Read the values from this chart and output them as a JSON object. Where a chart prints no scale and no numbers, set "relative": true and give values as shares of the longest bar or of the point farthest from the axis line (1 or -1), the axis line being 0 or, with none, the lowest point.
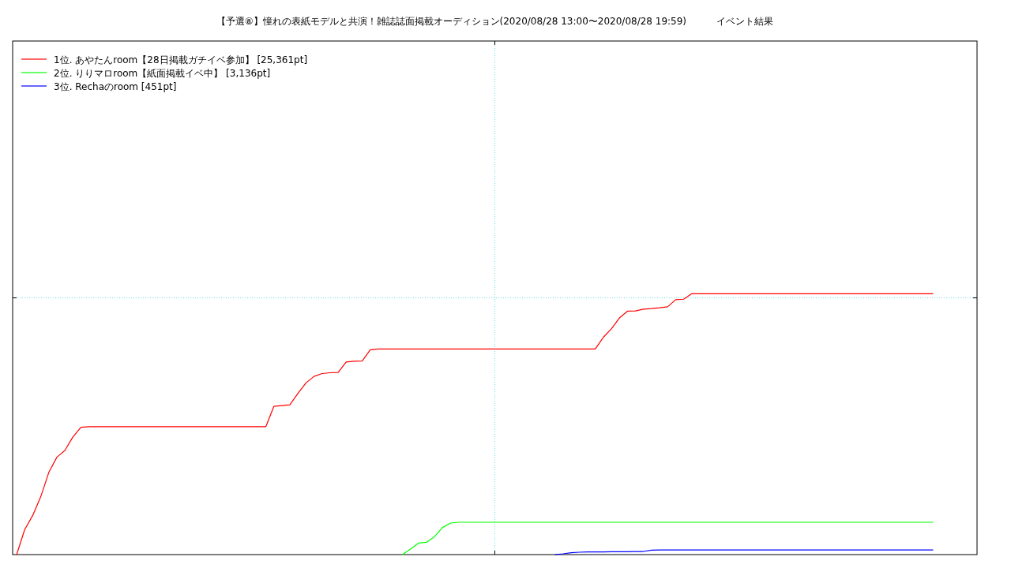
{
  "chart_data": {
    "type": "line",
    "title": "【予選⑧】憧れの表紙モデルと共演！雑誌誌面掲載オーディション(2020/08/28 13:00〜2020/08/28 19:59)          イベント結果",
    "categories": [
      null,
      null,
      null,
      null,
      null,
      null,
      null,
      null,
      null,
      null,
      null,
      null,
      null,
      null,
      null,
      null,
      null,
      null,
      null,
      null,
      null,
      null,
      null,
      null,
      null,
      null,
      null,
      null,
      null,
      null,
      null,
      null,
      null,
      null,
      null,
      null,
      null,
      null,
      null,
      null,
      null,
      null,
      null,
      null,
      null,
      null,
      null,
      null,
      null,
      null,
      null,
      null,
      null,
      null,
      null,
      null,
      null,
      null,
      null,
      null,
      null,
      null,
      null,
      null,
      null,
      null,
      null,
      null,
      null,
      null,
      null,
      null,
      null,
      null,
      null,
      null,
      null,
      null,
      null,
      null,
      null,
      null,
      null,
      null,
      null,
      null,
      null,
      null,
      null,
      null,
      null,
      null,
      null,
      null,
      null,
      null,
      null,
      null,
      null,
      null,
      null,
      null,
      null,
      null,
      null,
      null,
      null,
      null,
      null,
      null,
      null,
      null,
      null,
      null,
      null,
      null,
      null,
      null,
      null,
      null
    ],
    "relative": true,
    "legend": "top left",
    "ref_lines": [
      {
        "axis": "y",
        "value": 0.984,
        "color": "#66dede",
        "line_style": "dotted"
      }
    ],
    "series": [
      {
        "name": "1位. あやたんroom【28日掲載ガチイベ参加】 [25,361pt]",
        "color": "#ff0000",
        "values": [
          0,
          0.096,
          0.15,
          0.222,
          0.315,
          0.373,
          0.399,
          0.451,
          0.488,
          0.49,
          0.49,
          0.49,
          0.49,
          0.49,
          0.49,
          0.49,
          0.49,
          0.49,
          0.49,
          0.49,
          0.49,
          0.49,
          0.49,
          0.49,
          0.49,
          0.49,
          0.49,
          0.49,
          0.49,
          0.49,
          0.49,
          0.49,
          0.568,
          0.571,
          0.574,
          0.618,
          0.658,
          0.683,
          0.694,
          0.697,
          0.698,
          0.738,
          0.741,
          0.742,
          0.785,
          0.788,
          0.788,
          0.788,
          0.788,
          0.788,
          0.788,
          0.788,
          0.788,
          0.788,
          0.788,
          0.788,
          0.788,
          0.788,
          0.788,
          0.788,
          0.788,
          0.788,
          0.788,
          0.788,
          0.788,
          0.788,
          0.788,
          0.788,
          0.788,
          0.788,
          0.788,
          0.788,
          0.788,
          0.833,
          0.865,
          0.907,
          0.933,
          0.934,
          0.941,
          0.943,
          0.946,
          0.95,
          0.977,
          0.979,
          1,
          1,
          1,
          1,
          1,
          1,
          1,
          1,
          1,
          1,
          1,
          1,
          1,
          1,
          1,
          1,
          1,
          1,
          1,
          1,
          1,
          1,
          1,
          1,
          1,
          1,
          1,
          1,
          1,
          1,
          1,
          null,
          null,
          null,
          null,
          null
        ]
      },
      {
        "name": "2位. りりマロroom【紙面掲載イベ中】 [3,136pt]",
        "color": "#00ff00",
        "values": [
          null,
          null,
          null,
          null,
          null,
          null,
          null,
          null,
          null,
          null,
          null,
          null,
          null,
          null,
          null,
          null,
          null,
          null,
          null,
          null,
          null,
          null,
          null,
          null,
          null,
          null,
          null,
          null,
          null,
          null,
          null,
          null,
          null,
          null,
          null,
          null,
          null,
          null,
          null,
          null,
          null,
          null,
          null,
          null,
          null,
          null,
          null,
          null,
          0,
          0.021,
          0.044,
          0.047,
          0.069,
          0.104,
          0.121,
          0.124,
          0.124,
          0.124,
          0.124,
          0.124,
          0.124,
          0.124,
          0.124,
          0.124,
          0.124,
          0.124,
          0.124,
          0.124,
          0.124,
          0.124,
          0.124,
          0.124,
          0.124,
          0.124,
          0.124,
          0.124,
          0.124,
          0.124,
          0.124,
          0.124,
          0.124,
          0.124,
          0.124,
          0.124,
          0.124,
          0.124,
          0.124,
          0.124,
          0.124,
          0.124,
          0.124,
          0.124,
          0.124,
          0.124,
          0.124,
          0.124,
          0.124,
          0.124,
          0.124,
          0.124,
          0.124,
          0.124,
          0.124,
          0.124,
          0.124,
          0.124,
          0.124,
          0.124,
          0.124,
          0.124,
          0.124,
          0.124,
          0.124,
          0.124,
          0.124,
          null,
          null,
          null,
          null,
          null
        ]
      },
      {
        "name": "3位. Rechaのroom [451pt]",
        "color": "#0000ff",
        "values": [
          null,
          null,
          null,
          null,
          null,
          null,
          null,
          null,
          null,
          null,
          null,
          null,
          null,
          null,
          null,
          null,
          null,
          null,
          null,
          null,
          null,
          null,
          null,
          null,
          null,
          null,
          null,
          null,
          null,
          null,
          null,
          null,
          null,
          null,
          null,
          null,
          null,
          null,
          null,
          null,
          null,
          null,
          null,
          null,
          null,
          null,
          null,
          null,
          null,
          null,
          null,
          null,
          null,
          null,
          null,
          null,
          null,
          null,
          null,
          null,
          null,
          null,
          null,
          null,
          null,
          null,
          null,
          0,
          0.003,
          0.007,
          0.009,
          0.01,
          0.01,
          0.01,
          0.011,
          0.011,
          0.011,
          0.012,
          0.012,
          0.017,
          0.018,
          0.018,
          0.018,
          0.018,
          0.018,
          0.018,
          0.018,
          0.018,
          0.018,
          0.018,
          0.018,
          0.018,
          0.018,
          0.018,
          0.018,
          0.018,
          0.018,
          0.018,
          0.018,
          0.018,
          0.018,
          0.018,
          0.018,
          0.018,
          0.018,
          0.018,
          0.018,
          0.018,
          0.018,
          0.018,
          0.018,
          0.018,
          0.018,
          0.018,
          0.018,
          null,
          null,
          null,
          null,
          null
        ]
      }
    ]
  }
}
